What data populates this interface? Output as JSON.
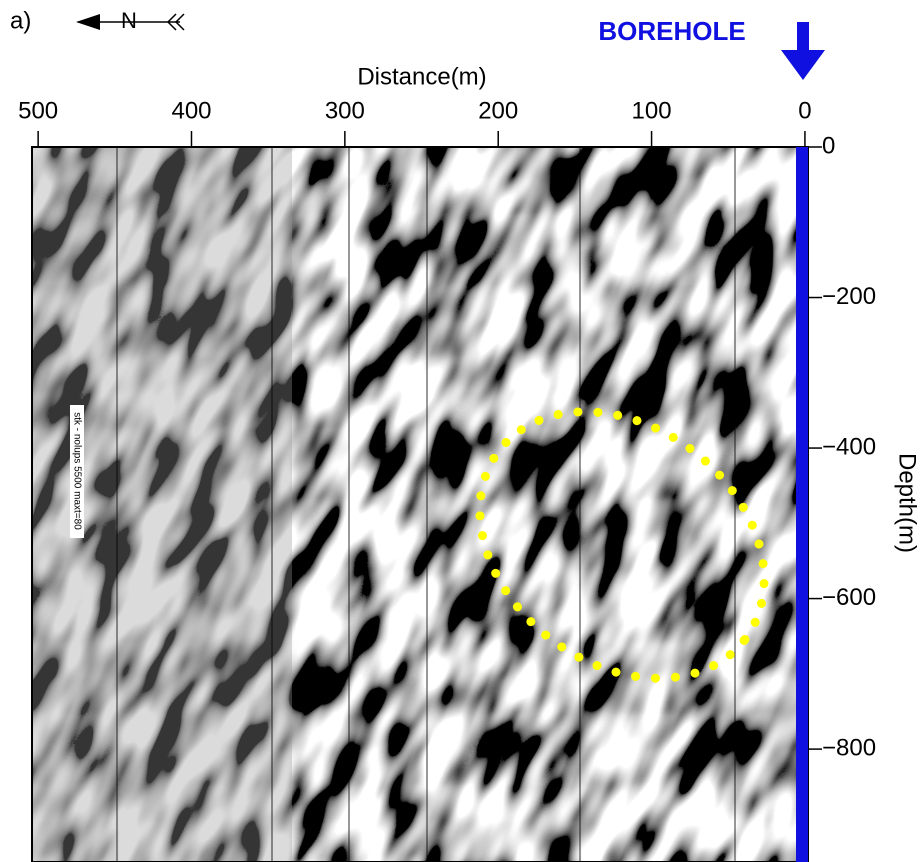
{
  "header": {
    "panel_label": "a)",
    "north": "N",
    "borehole": "BOREHOLE"
  },
  "chart_data": {
    "type": "seismic-section",
    "x_label": "Distance(m)",
    "y_label": "Depth(m)",
    "xlim": [
      504,
      -2
    ],
    "xticks": [
      500,
      400,
      300,
      200,
      100,
      0
    ],
    "ylim": [
      0,
      -950
    ],
    "yticks": [
      0,
      {
        "value": -200,
        "label": "−200"
      },
      {
        "value": -400,
        "label": "−400"
      },
      {
        "value": -600,
        "label": "−600"
      },
      {
        "value": -800,
        "label": "−800"
      }
    ],
    "annotation": "stk - nolups 5500 maxt=80"
  }
}
